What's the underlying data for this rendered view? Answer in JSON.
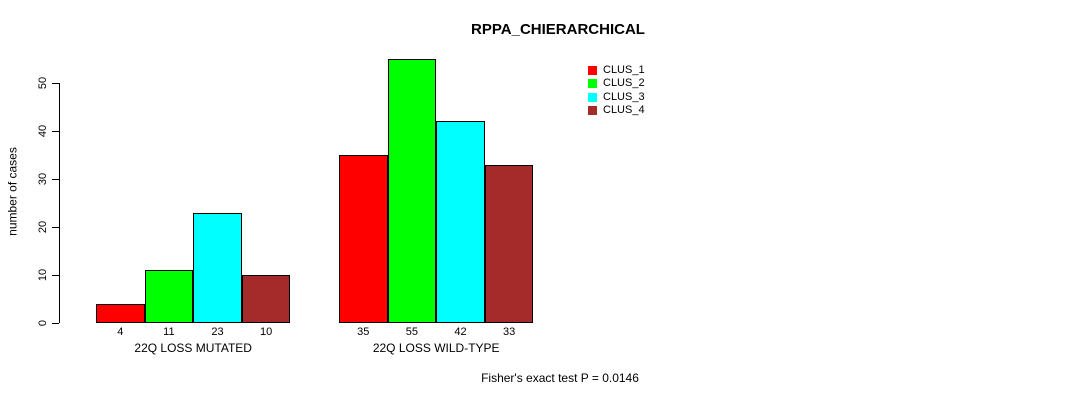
{
  "chart_data": {
    "type": "bar",
    "title": "RPPA_CHIERARCHICAL",
    "xlabel": "",
    "ylabel": "number of cases",
    "ylim": [
      0,
      50
    ],
    "yticks": [
      0,
      10,
      20,
      30,
      40,
      50
    ],
    "grid": false,
    "legend_position": "top-right",
    "show_bar_values": true,
    "groups": [
      "22Q LOSS MUTATED",
      "22Q LOSS WILD-TYPE"
    ],
    "series": [
      {
        "name": "CLUS_1",
        "color": "#ff0000",
        "values": [
          4,
          35
        ]
      },
      {
        "name": "CLUS_2",
        "color": "#00ff00",
        "values": [
          11,
          55
        ]
      },
      {
        "name": "CLUS_3",
        "color": "#00ffff",
        "values": [
          23,
          42
        ]
      },
      {
        "name": "CLUS_4",
        "color": "#a52a2a",
        "values": [
          10,
          33
        ]
      }
    ],
    "annotation": "Fisher's exact test P = 0.0146"
  },
  "colors": {
    "background": "#ffffff",
    "axis": "#000000",
    "clus_1": "#ff0000",
    "clus_2": "#00ff00",
    "clus_3": "#00ffff",
    "clus_4": "#a52a2a"
  }
}
